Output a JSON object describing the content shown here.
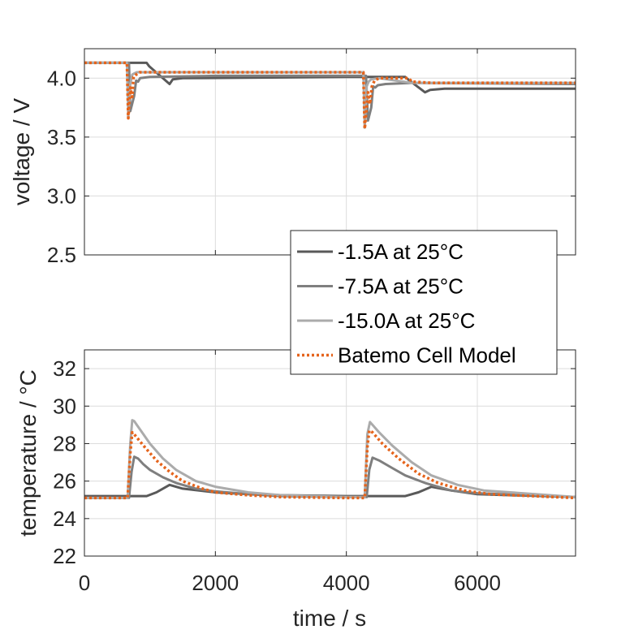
{
  "chart_data": [
    {
      "type": "line",
      "title": "",
      "xlabel": "",
      "ylabel": "voltage / V",
      "xlim": [
        0,
        7500
      ],
      "ylim": [
        2.5,
        4.25
      ],
      "xticks": [
        0,
        2000,
        4000,
        6000
      ],
      "yticks": [
        2.5,
        3.0,
        3.5,
        4.0
      ],
      "ytick_labels": [
        "2.5",
        "3.0",
        "3.5",
        "4.0"
      ],
      "grid": true,
      "series": [
        {
          "name": "-1.5A at 25°C",
          "color": "#595959",
          "style": "solid",
          "x": [
            0,
            950,
            990,
            1300,
            1350,
            1500,
            4000,
            4900,
            4940,
            5200,
            5280,
            5500,
            7500
          ],
          "y": [
            4.13,
            4.13,
            4.1,
            3.95,
            3.99,
            4.0,
            4.01,
            4.01,
            3.99,
            3.88,
            3.9,
            3.91,
            3.91
          ]
        },
        {
          "name": "-7.5A at 25°C",
          "color": "#7f7f7f",
          "style": "solid",
          "x": [
            0,
            680,
            700,
            760,
            790,
            820,
            850,
            1000,
            2000,
            4000,
            4300,
            4330,
            4380,
            4410,
            4440,
            4480,
            4600,
            5000,
            7500
          ],
          "y": [
            4.13,
            4.13,
            3.72,
            3.85,
            3.98,
            3.97,
            4.0,
            4.01,
            4.02,
            4.02,
            4.02,
            3.64,
            3.75,
            3.93,
            3.92,
            3.94,
            3.95,
            3.96,
            3.95
          ]
        },
        {
          "name": "-15.0A at 25°C",
          "color": "#ababab",
          "style": "solid",
          "x": [
            0,
            650,
            670,
            700,
            730,
            760,
            800,
            1000,
            2000,
            4000,
            4260,
            4280,
            4310,
            4340,
            4380,
            4500,
            5000,
            7500
          ],
          "y": [
            4.13,
            4.13,
            3.68,
            3.95,
            4.03,
            4.04,
            4.05,
            4.05,
            4.05,
            4.05,
            4.05,
            3.58,
            3.93,
            3.97,
            3.99,
            4.0,
            3.96,
            3.96
          ]
        },
        {
          "name": "Batemo Cell Model",
          "color": "#e5641c",
          "style": "dotted",
          "x": [
            0,
            650,
            670,
            700,
            730,
            750,
            790,
            840,
            1000,
            2000,
            4000,
            4260,
            4280,
            4330,
            4360,
            4390,
            4430,
            4500,
            4950,
            5000,
            5300,
            7500
          ],
          "y": [
            4.13,
            4.13,
            3.66,
            3.92,
            3.84,
            4.01,
            4.03,
            4.05,
            4.05,
            4.05,
            4.05,
            4.05,
            3.57,
            3.88,
            3.78,
            3.93,
            3.98,
            4.0,
            4.0,
            3.97,
            3.96,
            3.96
          ]
        }
      ]
    },
    {
      "type": "line",
      "title": "",
      "xlabel": "time / s",
      "ylabel": "temperature / °C",
      "xlim": [
        0,
        7500
      ],
      "ylim": [
        22,
        33
      ],
      "xticks": [
        0,
        2000,
        4000,
        6000
      ],
      "yticks": [
        22,
        24,
        26,
        28,
        30,
        32
      ],
      "grid": true,
      "series": [
        {
          "name": "-1.5A at 25°C",
          "color": "#595959",
          "style": "solid",
          "x": [
            0,
            950,
            1100,
            1300,
            1500,
            2000,
            2500,
            3000,
            4000,
            4900,
            5100,
            5300,
            5600,
            6000,
            7500
          ],
          "y": [
            25.2,
            25.2,
            25.4,
            25.8,
            25.6,
            25.4,
            25.3,
            25.25,
            25.2,
            25.2,
            25.4,
            25.7,
            25.5,
            25.3,
            25.15
          ]
        },
        {
          "name": "-7.5A at 25°C",
          "color": "#7f7f7f",
          "style": "solid",
          "x": [
            0,
            680,
            720,
            760,
            820,
            900,
            1000,
            1200,
            1400,
            1700,
            2000,
            2500,
            3000,
            4000,
            4310,
            4350,
            4400,
            4500,
            4700,
            4900,
            5200,
            5600,
            6000,
            7500
          ],
          "y": [
            25.1,
            25.1,
            26.5,
            27.3,
            27.2,
            26.9,
            26.6,
            26.2,
            25.9,
            25.6,
            25.45,
            25.3,
            25.2,
            25.15,
            25.15,
            26.6,
            27.25,
            27.1,
            26.7,
            26.3,
            25.9,
            25.5,
            25.35,
            25.15
          ]
        },
        {
          "name": "-15.0A at 25°C",
          "color": "#ababab",
          "style": "solid",
          "x": [
            0,
            660,
            700,
            730,
            760,
            800,
            900,
            1000,
            1200,
            1400,
            1700,
            2000,
            2500,
            3000,
            4000,
            4280,
            4320,
            4360,
            4400,
            4500,
            4700,
            5000,
            5300,
            5700,
            6100,
            7500
          ],
          "y": [
            25.1,
            25.1,
            28.0,
            29.25,
            29.2,
            29.0,
            28.5,
            28.0,
            27.2,
            26.6,
            26.0,
            25.7,
            25.4,
            25.25,
            25.15,
            25.15,
            28.5,
            29.15,
            29.0,
            28.6,
            27.9,
            27.0,
            26.3,
            25.8,
            25.5,
            25.15
          ]
        },
        {
          "name": "Batemo Cell Model",
          "color": "#e5641c",
          "style": "dotted",
          "x": [
            0,
            660,
            700,
            730,
            760,
            900,
            1100,
            1300,
            1500,
            1800,
            2000,
            2500,
            3000,
            4000,
            4280,
            4320,
            4350,
            4400,
            4550,
            4800,
            5100,
            5400,
            5800,
            6200,
            7500
          ],
          "y": [
            25.1,
            25.1,
            27.5,
            28.6,
            28.5,
            27.9,
            27.1,
            26.5,
            26.0,
            25.6,
            25.4,
            25.25,
            25.15,
            25.1,
            25.1,
            27.8,
            28.7,
            28.6,
            28.0,
            27.2,
            26.4,
            25.9,
            25.5,
            25.3,
            25.1
          ]
        }
      ]
    }
  ],
  "legend": {
    "placement": "between panels, right",
    "items": [
      {
        "label": "-1.5A at 25°C",
        "color": "#595959",
        "style": "solid"
      },
      {
        "label": "-7.5A at 25°C",
        "color": "#7f7f7f",
        "style": "solid"
      },
      {
        "label": "-15.0A at 25°C",
        "color": "#ababab",
        "style": "solid"
      },
      {
        "label": "Batemo Cell Model",
        "color": "#e5641c",
        "style": "dotted"
      }
    ]
  }
}
